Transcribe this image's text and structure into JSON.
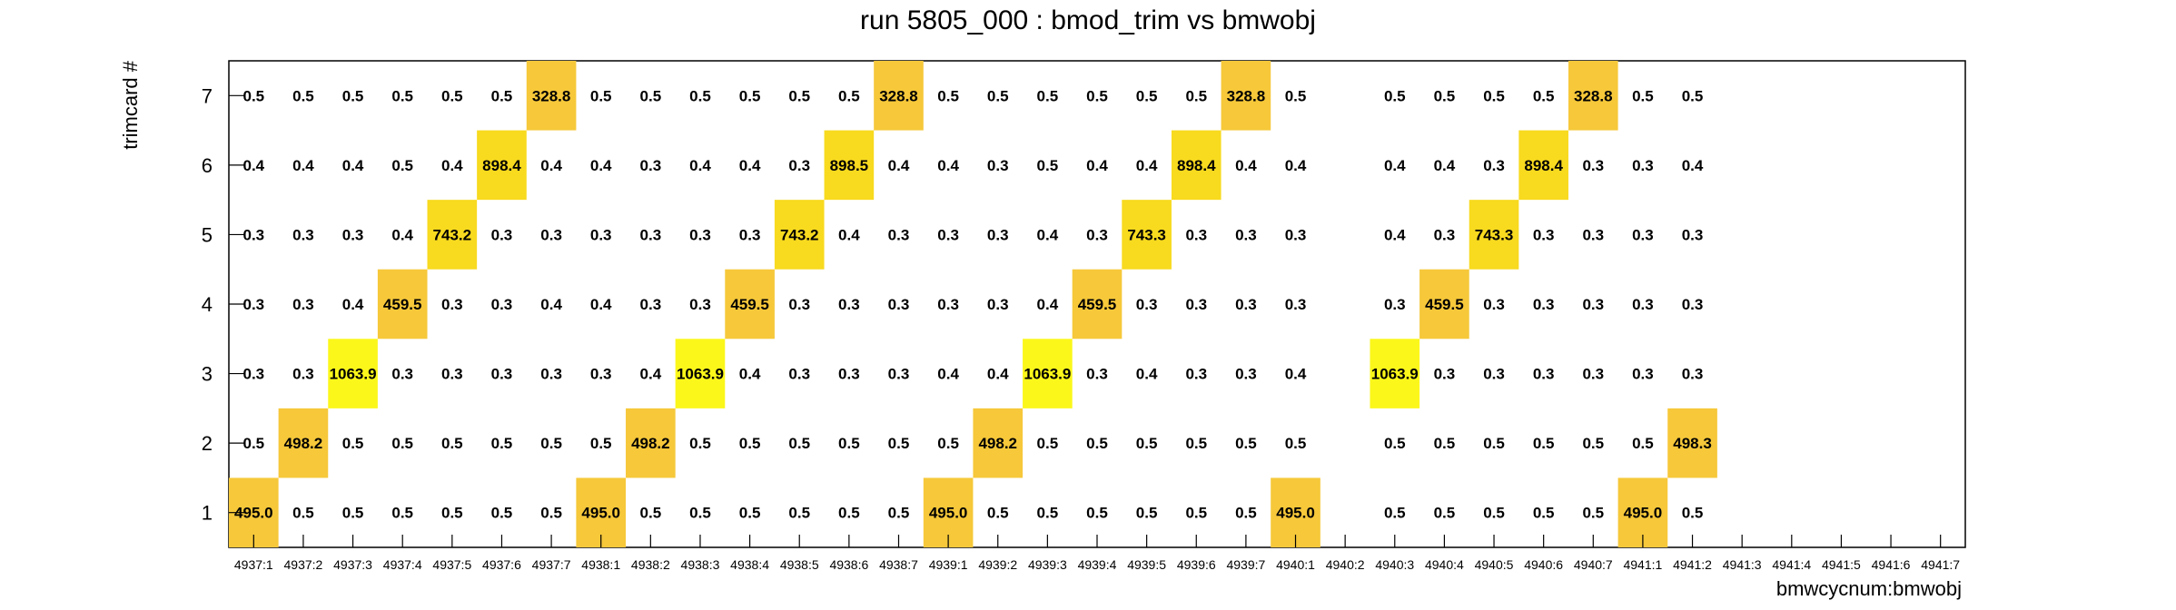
{
  "chart_data": {
    "type": "heatmap",
    "title": "run 5805_000 : bmod_trim vs bmwobj",
    "xlabel": "bmwcycnum:bmwobj",
    "ylabel": "trimcard #",
    "x_categories": [
      "4937:1",
      "4937:2",
      "4937:3",
      "4937:4",
      "4937:5",
      "4937:6",
      "4937:7",
      "4938:1",
      "4938:2",
      "4938:3",
      "4938:4",
      "4938:5",
      "4938:6",
      "4938:7",
      "4939:1",
      "4939:2",
      "4939:3",
      "4939:4",
      "4939:5",
      "4939:6",
      "4939:7",
      "4940:1",
      "4940:2",
      "4940:3",
      "4940:4",
      "4940:5",
      "4940:6",
      "4940:7",
      "4941:1",
      "4941:2",
      "4941:3",
      "4941:4",
      "4941:5",
      "4941:6",
      "4941:7"
    ],
    "y_categories": [
      "1",
      "2",
      "3",
      "4",
      "5",
      "6",
      "7"
    ],
    "rows": [
      {
        "y": "7",
        "values": [
          0.5,
          0.5,
          0.5,
          0.5,
          0.5,
          0.5,
          328.8,
          0.5,
          0.5,
          0.5,
          0.5,
          0.5,
          0.5,
          328.8,
          0.5,
          0.5,
          0.5,
          0.5,
          0.5,
          0.5,
          328.8,
          0.5,
          null,
          0.5,
          0.5,
          0.5,
          0.5,
          328.8,
          0.5,
          0.5,
          null,
          null,
          null,
          null,
          null
        ]
      },
      {
        "y": "6",
        "values": [
          0.4,
          0.4,
          0.4,
          0.5,
          0.4,
          898.4,
          0.4,
          0.4,
          0.3,
          0.4,
          0.4,
          0.3,
          898.5,
          0.4,
          0.4,
          0.3,
          0.5,
          0.4,
          0.4,
          898.4,
          0.4,
          0.4,
          null,
          0.4,
          0.4,
          0.3,
          898.4,
          0.3,
          0.3,
          0.4,
          null,
          null,
          null,
          null,
          null
        ]
      },
      {
        "y": "5",
        "values": [
          0.3,
          0.3,
          0.3,
          0.4,
          743.2,
          0.3,
          0.3,
          0.3,
          0.3,
          0.3,
          0.3,
          743.2,
          0.4,
          0.3,
          0.3,
          0.3,
          0.4,
          0.3,
          743.3,
          0.3,
          0.3,
          0.3,
          null,
          0.4,
          0.3,
          743.3,
          0.3,
          0.3,
          0.3,
          0.3,
          null,
          null,
          null,
          null,
          null
        ]
      },
      {
        "y": "4",
        "values": [
          0.3,
          0.3,
          0.4,
          459.5,
          0.3,
          0.3,
          0.4,
          0.4,
          0.3,
          0.3,
          459.5,
          0.3,
          0.3,
          0.3,
          0.3,
          0.3,
          0.4,
          459.5,
          0.3,
          0.3,
          0.3,
          0.3,
          null,
          0.3,
          459.5,
          0.3,
          0.3,
          0.3,
          0.3,
          0.3,
          null,
          null,
          null,
          null,
          null
        ]
      },
      {
        "y": "3",
        "values": [
          0.3,
          0.3,
          1063.9,
          0.3,
          0.3,
          0.3,
          0.3,
          0.3,
          0.4,
          1063.9,
          0.4,
          0.3,
          0.3,
          0.3,
          0.4,
          0.4,
          1063.9,
          0.3,
          0.4,
          0.3,
          0.3,
          0.4,
          null,
          1063.9,
          0.3,
          0.3,
          0.3,
          0.3,
          0.3,
          0.3,
          null,
          null,
          null,
          null,
          null
        ]
      },
      {
        "y": "2",
        "values": [
          0.5,
          498.2,
          0.5,
          0.5,
          0.5,
          0.5,
          0.5,
          0.5,
          498.2,
          0.5,
          0.5,
          0.5,
          0.5,
          0.5,
          0.5,
          498.2,
          0.5,
          0.5,
          0.5,
          0.5,
          0.5,
          0.5,
          null,
          0.5,
          0.5,
          0.5,
          0.5,
          0.5,
          0.5,
          498.3,
          null,
          null,
          null,
          null,
          null
        ]
      },
      {
        "y": "1",
        "values": [
          495.0,
          0.5,
          0.5,
          0.5,
          0.5,
          0.5,
          0.5,
          495.0,
          0.5,
          0.5,
          0.5,
          0.5,
          0.5,
          0.5,
          495.0,
          0.5,
          0.5,
          0.5,
          0.5,
          0.5,
          0.5,
          495.0,
          null,
          0.5,
          0.5,
          0.5,
          0.5,
          0.5,
          495.0,
          0.5,
          null,
          null,
          null,
          null,
          null
        ]
      }
    ],
    "colors": {
      "high": "#fbf71a",
      "mid": "#f8da1f",
      "low": "#f6c83a",
      "frame": "#000000"
    }
  }
}
